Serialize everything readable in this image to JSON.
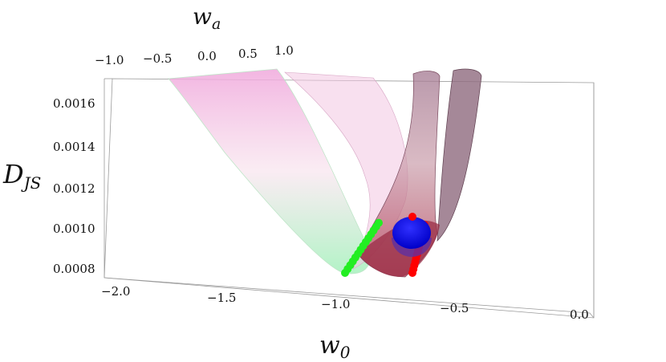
{
  "chart_data": {
    "type": "surface3d",
    "axes": {
      "x": {
        "label_main": "w",
        "label_sub": "0",
        "range": [
          -2.0,
          0.0
        ],
        "ticks": [
          "−2.0",
          "−1.5",
          "−1.0",
          "−0.5",
          "0.0"
        ]
      },
      "y": {
        "label_main": "w",
        "label_sub": "a",
        "range": [
          -1.0,
          1.0
        ],
        "ticks": [
          "−1.0",
          "−0.5",
          "0.0",
          "0.5",
          "1.0"
        ]
      },
      "z": {
        "label_main": "D",
        "label_sub": "JS",
        "range": [
          0.0008,
          0.0016
        ],
        "ticks": [
          "0.0016",
          "0.0014",
          "0.0012",
          "0.0010",
          "0.0008"
        ]
      }
    },
    "series": [
      {
        "kind": "surface",
        "color_top": "#f0a8dc",
        "color_bottom": "#9ff0b8",
        "minimum": {
          "w0": -1.0,
          "wa": 0.0,
          "D": 0.0008
        }
      },
      {
        "kind": "surface",
        "color_top": "#b48aa0",
        "color_bottom": "#b03a50",
        "minimum": {
          "w0": -0.72,
          "wa": 0.2,
          "D": 0.00082
        }
      },
      {
        "kind": "points",
        "color": "#22ee22",
        "w0_range": [
          -1.0,
          -0.86
        ],
        "D_range": [
          0.0008,
          0.00104
        ]
      },
      {
        "kind": "points",
        "color": "#ff0000",
        "w0_range": [
          -0.72,
          -0.67
        ],
        "D_range": [
          0.0008,
          0.00103
        ]
      },
      {
        "kind": "marker",
        "color": "#0000ff",
        "w0": -0.68,
        "D": 0.00099
      }
    ],
    "grid": false
  }
}
